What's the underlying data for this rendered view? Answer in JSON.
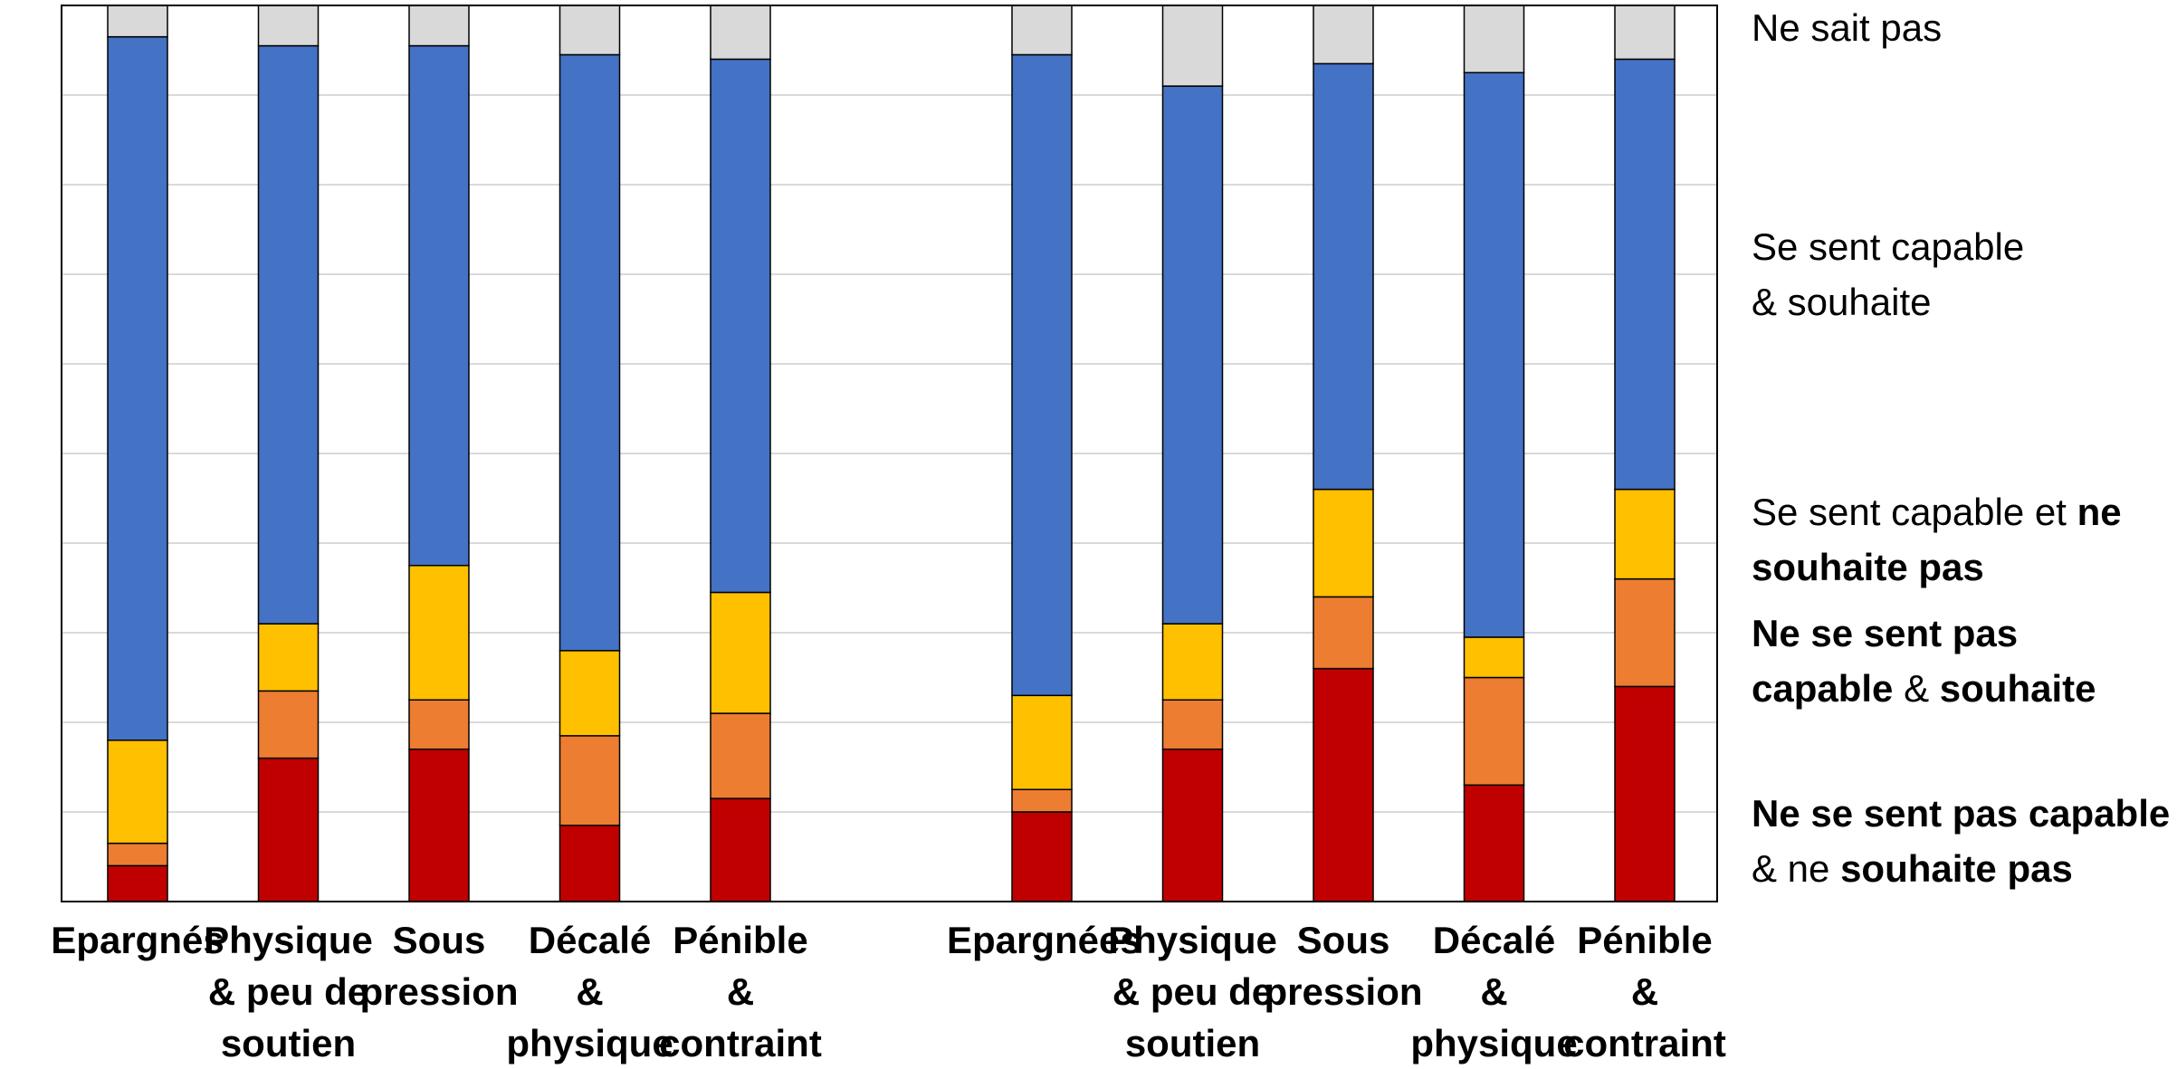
{
  "chart_data": {
    "type": "bar",
    "stacked": true,
    "normalized": true,
    "ylim": [
      0,
      100
    ],
    "grid": true,
    "legend_position": "right",
    "groups": [
      {
        "categories": [
          "Epargnés",
          "Physique\n& peu de\nsoutien",
          "Sous\npression",
          "Décalé\n&\nphysique",
          "Pénible\n&\ncontraint"
        ]
      },
      {
        "categories": [
          "Epargnées",
          "Physique\n& peu de\nsoutien",
          "Sous\npression",
          "Décalé\n&\nphysique",
          "Pénible\n&\ncontraint"
        ]
      }
    ],
    "series": [
      {
        "name": "Ne se sent pas capable & ne souhaite pas",
        "color": "#C00000",
        "values": [
          4,
          16,
          17,
          8.5,
          11.5,
          10,
          17,
          26,
          13,
          24
        ]
      },
      {
        "name": "Ne se sent pas capable & souhaite",
        "color": "#ED7D31",
        "values": [
          2.5,
          7.5,
          5.5,
          10,
          9.5,
          2.5,
          5.5,
          8,
          12,
          12
        ]
      },
      {
        "name": "Se sent capable et ne souhaite pas",
        "color": "#FFC000",
        "values": [
          11.5,
          7.5,
          15,
          9.5,
          13.5,
          10.5,
          8.5,
          12,
          4.5,
          10
        ]
      },
      {
        "name": "Se sent capable & souhaite",
        "color": "#4472C4",
        "values": [
          78.5,
          64.5,
          58,
          66.5,
          59.5,
          71.5,
          60,
          47.5,
          63,
          48
        ]
      },
      {
        "name": "Ne sait pas",
        "color": "#D9D9D9",
        "values": [
          3.5,
          4.5,
          4.5,
          5.5,
          6,
          5.5,
          9,
          6.5,
          7.5,
          6
        ]
      }
    ],
    "legend": [
      {
        "parts": [
          {
            "t": "Ne sait pas",
            "b": false
          }
        ]
      },
      {
        "parts": [
          {
            "t": "Se sent capable",
            "b": false
          },
          {
            "br": true
          },
          {
            "t": "& souhaite",
            "b": false
          }
        ]
      },
      {
        "parts": [
          {
            "t": "Se sent capable et ",
            "b": false
          },
          {
            "t": "ne",
            "b": true
          },
          {
            "br": true
          },
          {
            "t": "souhaite pas",
            "b": true
          }
        ]
      },
      {
        "parts": [
          {
            "t": "Ne se sent pas",
            "b": true
          },
          {
            "br": true
          },
          {
            "t": "capable",
            "b": true
          },
          {
            "t": " & ",
            "b": false
          },
          {
            "t": "souhaite",
            "b": true
          }
        ]
      },
      {
        "parts": [
          {
            "t": "Ne se sent pas capable",
            "b": true
          },
          {
            "br": true
          },
          {
            "t": "& ne ",
            "b": false
          },
          {
            "t": "souhaite pas",
            "b": true
          }
        ]
      }
    ]
  }
}
